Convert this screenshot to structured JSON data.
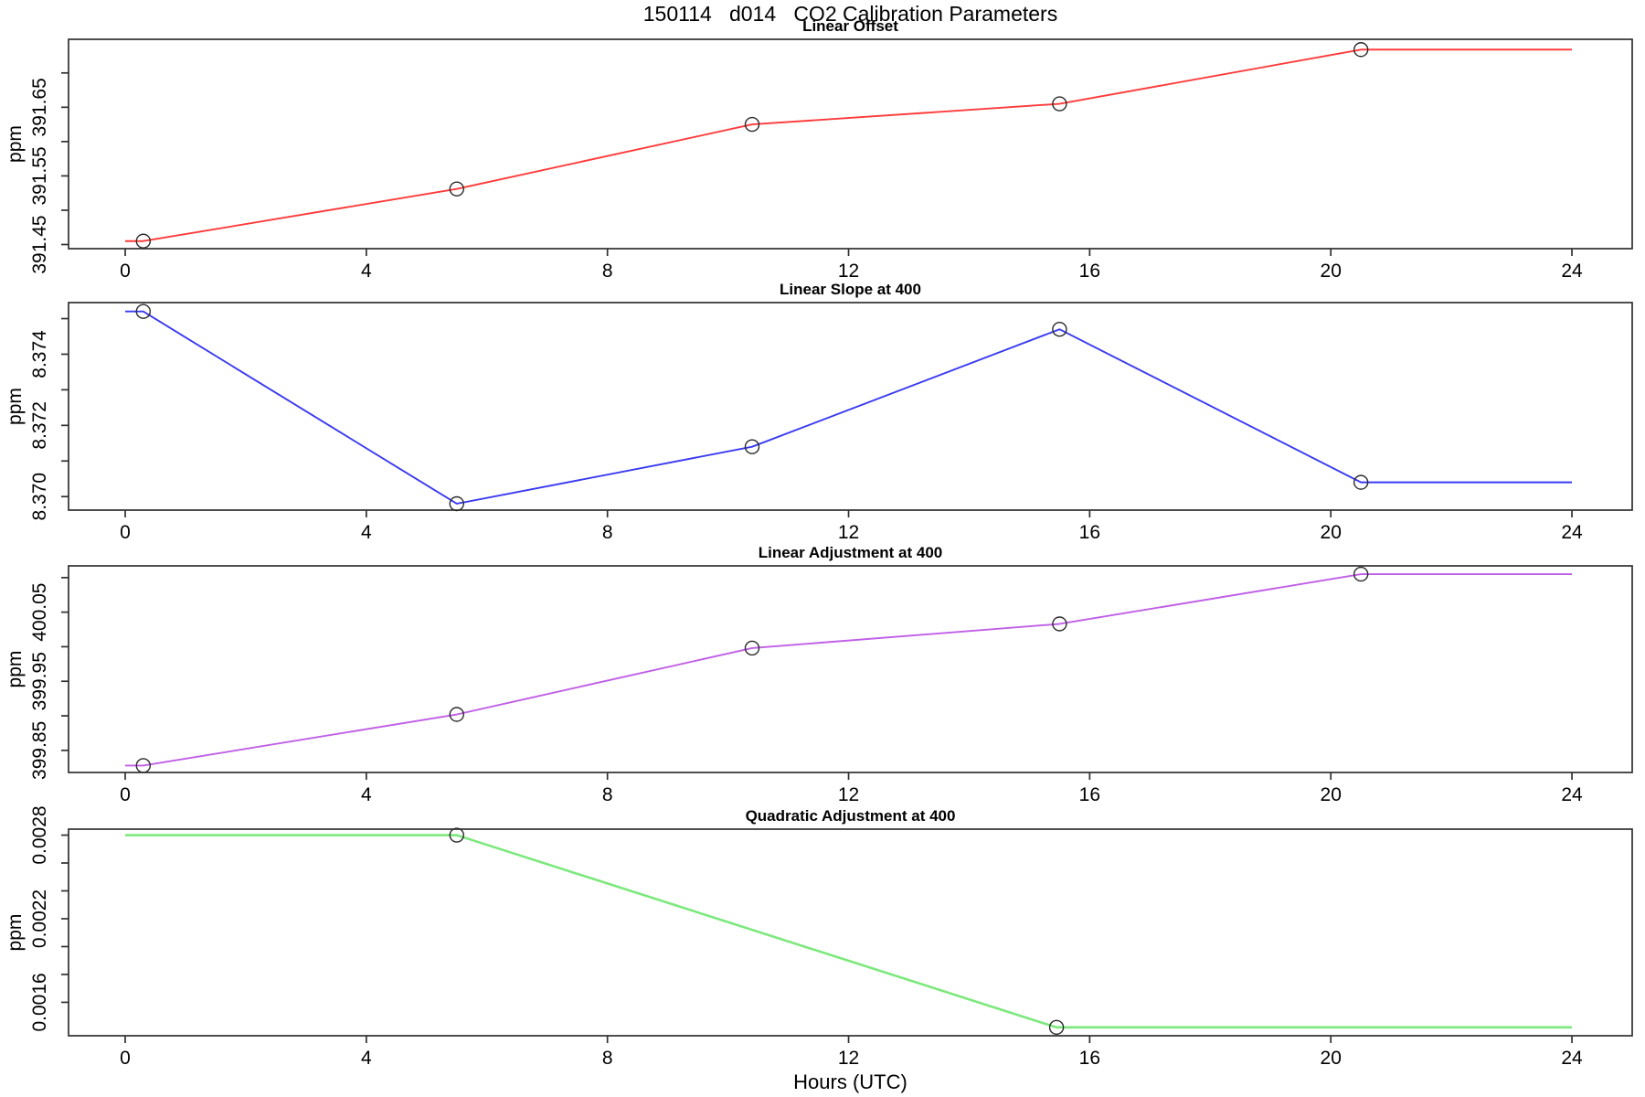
{
  "page": {
    "title": "150114   d014   CO2 Calibration Parameters",
    "x_axis_label": "Hours (UTC)"
  },
  "chart_data": {
    "type": "line",
    "title": "150114   d014   CO2 Calibration Parameters",
    "xlabel": "Hours (UTC)",
    "x_ticks": [
      0,
      4,
      8,
      12,
      16,
      20,
      24
    ],
    "xlim": [
      -0.94,
      25.0
    ],
    "grid": "off",
    "legend": "none",
    "panels": [
      {
        "title": "Linear Offset",
        "ylabel": "ppm",
        "color": "#ff3b3b",
        "ylim": [
          391.444,
          391.749
        ],
        "y_minor_ticks": [
          391.45,
          391.5,
          391.55,
          391.6,
          391.65,
          391.7
        ],
        "y_tick_labels": [
          {
            "value": 391.45,
            "label": "391.45"
          },
          {
            "value": 391.55,
            "label": "391.55"
          },
          {
            "value": 391.65,
            "label": "391.65"
          }
        ],
        "line": {
          "x": [
            0,
            0.3,
            5.5,
            10.4,
            15.5,
            20.5,
            24
          ],
          "y": [
            391.455,
            391.455,
            391.531,
            391.625,
            391.655,
            391.734,
            391.734
          ]
        },
        "points": {
          "x": [
            0.3,
            5.5,
            10.4,
            15.5,
            20.5
          ],
          "y": [
            391.455,
            391.531,
            391.625,
            391.655,
            391.734
          ]
        }
      },
      {
        "title": "Linear Slope at 400",
        "ylabel": "ppm",
        "color": "#3a3af2",
        "ylim": [
          8.36962,
          8.37545
        ],
        "y_minor_ticks": [
          8.37,
          8.371,
          8.372,
          8.373,
          8.374,
          8.375
        ],
        "y_tick_labels": [
          {
            "value": 8.37,
            "label": "8.370"
          },
          {
            "value": 8.372,
            "label": "8.372"
          },
          {
            "value": 8.374,
            "label": "8.374"
          }
        ],
        "line": {
          "x": [
            0,
            0.3,
            5.5,
            10.4,
            15.5,
            20.5,
            24
          ],
          "y": [
            8.3752,
            8.3752,
            8.3698,
            8.3714,
            8.3747,
            8.3704,
            8.3704
          ]
        },
        "points": {
          "x": [
            0.3,
            5.5,
            10.4,
            15.5,
            20.5
          ],
          "y": [
            8.3752,
            8.3698,
            8.3714,
            8.3747,
            8.3704
          ]
        }
      },
      {
        "title": "Linear Adjustment at 400",
        "ylabel": "ppm",
        "color": "#c05fe6",
        "ylim": [
          399.818,
          400.117
        ],
        "y_minor_ticks": [
          399.85,
          399.9,
          399.95,
          400.0,
          400.05,
          400.1
        ],
        "y_tick_labels": [
          {
            "value": 399.85,
            "label": "399.85"
          },
          {
            "value": 399.95,
            "label": "399.95"
          },
          {
            "value": 400.05,
            "label": "400.05"
          }
        ],
        "line": {
          "x": [
            0,
            0.3,
            5.5,
            10.4,
            15.5,
            20.5,
            24
          ],
          "y": [
            399.828,
            399.828,
            399.902,
            399.998,
            400.033,
            400.105,
            400.105
          ]
        },
        "points": {
          "x": [
            0.3,
            5.5,
            10.4,
            15.5,
            20.5
          ],
          "y": [
            399.828,
            399.902,
            399.998,
            400.033,
            400.105
          ]
        }
      },
      {
        "title": "Quadratic Adjustment at 400",
        "ylabel": "ppm",
        "color": "#7de87d",
        "ylim": [
          0.00136,
          0.002843
        ],
        "y_minor_ticks": [
          0.0016,
          0.0018,
          0.002,
          0.0022,
          0.0024,
          0.0026,
          0.0028
        ],
        "y_tick_labels": [
          {
            "value": 0.0016,
            "label": "0.0016"
          },
          {
            "value": 0.0022,
            "label": "0.0022"
          },
          {
            "value": 0.0028,
            "label": "0.0028"
          }
        ],
        "line": {
          "x": [
            0,
            5.5,
            15.45,
            24
          ],
          "y": [
            0.0028,
            0.0028,
            0.00142,
            0.00142
          ]
        },
        "points": {
          "x": [
            5.5,
            15.45
          ],
          "y": [
            0.0028,
            0.00142
          ]
        }
      }
    ]
  }
}
